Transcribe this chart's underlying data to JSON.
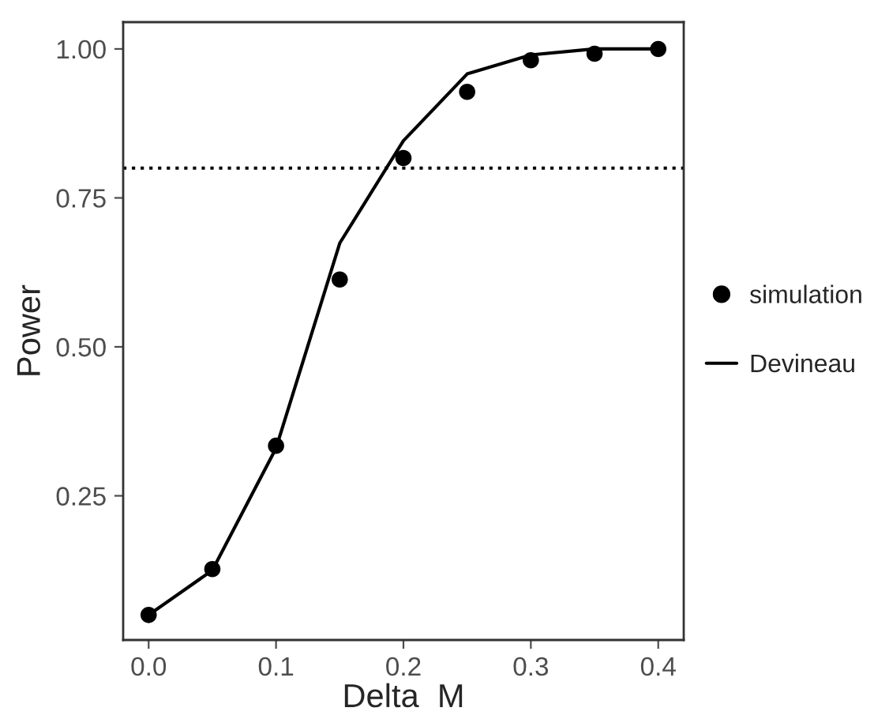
{
  "chart_data": {
    "type": "line",
    "xlabel": "Delta  M",
    "ylabel": "Power",
    "x": [
      0,
      0.05,
      0.1,
      0.15,
      0.2,
      0.25,
      0.3,
      0.35,
      0.4
    ],
    "series": [
      {
        "name": "simulation",
        "type": "scatter",
        "color": "#000000",
        "values": [
          0.05,
          0.127,
          0.334,
          0.613,
          0.817,
          0.928,
          0.981,
          0.992,
          1.0
        ]
      },
      {
        "name": "Devineau",
        "color": "#000000",
        "values": [
          0.05,
          0.125,
          0.33,
          0.674,
          0.846,
          0.958,
          0.99,
          1.0,
          1.0
        ]
      }
    ],
    "xlim": [
      -0.02,
      0.42
    ],
    "ylim": [
      0.008,
      1.045
    ],
    "xticks": [
      {
        "value": 0,
        "label": "0.0"
      },
      0.1,
      0.2,
      0.3,
      0.4
    ],
    "yticks": [
      {
        "value": 0.25,
        "label": "0.25"
      },
      {
        "value": 0.5,
        "label": "0.50"
      },
      {
        "value": 0.75,
        "label": "0.75"
      },
      {
        "value": 1,
        "label": "1.00"
      }
    ],
    "ref_lines": [
      {
        "axis": "y",
        "value": 0.8,
        "line_style": "dotted",
        "color": "#000000"
      }
    ],
    "grid": false,
    "legend": "right"
  }
}
